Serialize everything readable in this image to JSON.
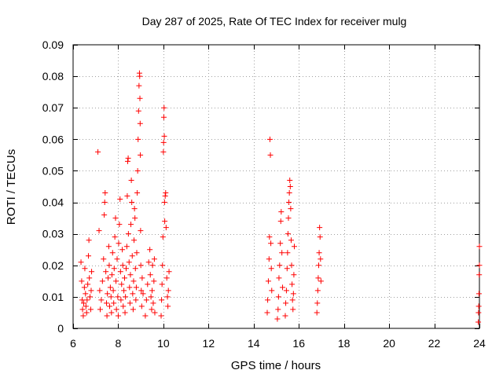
{
  "chart_data": {
    "type": "scatter",
    "title": "Day 287 of 2025, Rate Of TEC Index for receiver mulg",
    "xlabel": "GPS time / hours",
    "ylabel": "ROTI / TECUs",
    "xlim": [
      6,
      24
    ],
    "ylim": [
      0,
      0.09
    ],
    "xticks": [
      "6",
      "8",
      "10",
      "12",
      "14",
      "16",
      "18",
      "20",
      "22",
      "24"
    ],
    "yticks": [
      "0",
      "0.01",
      "0.02",
      "0.03",
      "0.04",
      "0.05",
      "0.06",
      "0.07",
      "0.08",
      "0.09"
    ],
    "grid": true,
    "marker": "+",
    "color": "#ff0000",
    "series": [
      {
        "points": [
          [
            6.35,
            0.021
          ],
          [
            6.38,
            0.015
          ],
          [
            6.4,
            0.009
          ],
          [
            6.42,
            0.006
          ],
          [
            6.45,
            0.004
          ],
          [
            6.47,
            0.008
          ],
          [
            6.5,
            0.013
          ],
          [
            6.52,
            0.019
          ],
          [
            6.55,
            0.011
          ],
          [
            6.57,
            0.007
          ],
          [
            6.6,
            0.005
          ],
          [
            6.62,
            0.009
          ],
          [
            6.65,
            0.014
          ],
          [
            6.68,
            0.023
          ],
          [
            6.7,
            0.028
          ],
          [
            6.72,
            0.016
          ],
          [
            6.75,
            0.01
          ],
          [
            6.78,
            0.006
          ],
          [
            6.8,
            0.012
          ],
          [
            6.82,
            0.018
          ],
          [
            7.1,
            0.056
          ],
          [
            7.15,
            0.031
          ],
          [
            7.18,
            0.012
          ],
          [
            7.2,
            0.006
          ],
          [
            7.25,
            0.009
          ],
          [
            7.3,
            0.015
          ],
          [
            7.35,
            0.022
          ],
          [
            7.38,
            0.036
          ],
          [
            7.4,
            0.04
          ],
          [
            7.42,
            0.043
          ],
          [
            7.45,
            0.018
          ],
          [
            7.48,
            0.008
          ],
          [
            7.5,
            0.004
          ],
          [
            7.52,
            0.011
          ],
          [
            7.55,
            0.016
          ],
          [
            7.58,
            0.026
          ],
          [
            7.6,
            0.02
          ],
          [
            7.62,
            0.007
          ],
          [
            7.65,
            0.013
          ],
          [
            7.68,
            0.01
          ],
          [
            7.7,
            0.005
          ],
          [
            7.72,
            0.017
          ],
          [
            7.75,
            0.024
          ],
          [
            7.78,
            0.012
          ],
          [
            7.8,
            0.008
          ],
          [
            7.82,
            0.019
          ],
          [
            7.85,
            0.029
          ],
          [
            7.88,
            0.035
          ],
          [
            7.9,
            0.015
          ],
          [
            7.92,
            0.006
          ],
          [
            7.95,
            0.022
          ],
          [
            7.98,
            0.01
          ],
          [
            8.0,
            0.004
          ],
          [
            8.02,
            0.027
          ],
          [
            8.05,
            0.033
          ],
          [
            8.08,
            0.041
          ],
          [
            8.1,
            0.018
          ],
          [
            8.12,
            0.009
          ],
          [
            8.15,
            0.014
          ],
          [
            8.18,
            0.025
          ],
          [
            8.2,
            0.02
          ],
          [
            8.22,
            0.007
          ],
          [
            8.25,
            0.012
          ],
          [
            8.28,
            0.016
          ],
          [
            8.3,
            0.005
          ],
          [
            8.32,
            0.01
          ],
          [
            8.35,
            0.019
          ],
          [
            8.38,
            0.026
          ],
          [
            8.4,
            0.042
          ],
          [
            8.42,
            0.053
          ],
          [
            8.44,
            0.054
          ],
          [
            8.45,
            0.03
          ],
          [
            8.48,
            0.021
          ],
          [
            8.5,
            0.013
          ],
          [
            8.52,
            0.008
          ],
          [
            8.54,
            0.017
          ],
          [
            8.56,
            0.033
          ],
          [
            8.58,
            0.047
          ],
          [
            8.6,
            0.04
          ],
          [
            8.62,
            0.023
          ],
          [
            8.64,
            0.011
          ],
          [
            8.66,
            0.006
          ],
          [
            8.68,
            0.015
          ],
          [
            8.7,
            0.028
          ],
          [
            8.72,
            0.038
          ],
          [
            8.74,
            0.035
          ],
          [
            8.76,
            0.019
          ],
          [
            8.78,
            0.009
          ],
          [
            8.8,
            0.013
          ],
          [
            8.82,
            0.024
          ],
          [
            8.84,
            0.043
          ],
          [
            8.86,
            0.05
          ],
          [
            8.88,
            0.06
          ],
          [
            8.9,
            0.069
          ],
          [
            8.92,
            0.077
          ],
          [
            8.94,
            0.081
          ],
          [
            8.95,
            0.08
          ],
          [
            8.96,
            0.073
          ],
          [
            8.97,
            0.065
          ],
          [
            8.98,
            0.055
          ],
          [
            8.99,
            0.031
          ],
          [
            9.0,
            0.02
          ],
          [
            9.02,
            0.012
          ],
          [
            9.04,
            0.007
          ],
          [
            9.06,
            0.016
          ],
          [
            9.1,
            0.011
          ],
          [
            9.2,
            0.004
          ],
          [
            9.25,
            0.009
          ],
          [
            9.3,
            0.014
          ],
          [
            9.35,
            0.021
          ],
          [
            9.4,
            0.025
          ],
          [
            9.42,
            0.017
          ],
          [
            9.45,
            0.01
          ],
          [
            9.48,
            0.006
          ],
          [
            9.5,
            0.012
          ],
          [
            9.52,
            0.02
          ],
          [
            9.55,
            0.008
          ],
          [
            9.58,
            0.015
          ],
          [
            9.6,
            0.022
          ],
          [
            9.62,
            0.005
          ],
          [
            9.9,
            0.004
          ],
          [
            9.92,
            0.009
          ],
          [
            9.94,
            0.014
          ],
          [
            9.96,
            0.02
          ],
          [
            9.98,
            0.029
          ],
          [
            10.0,
            0.056
          ],
          [
            10.01,
            0.059
          ],
          [
            10.02,
            0.067
          ],
          [
            10.03,
            0.07
          ],
          [
            10.04,
            0.061
          ],
          [
            10.05,
            0.04
          ],
          [
            10.06,
            0.034
          ],
          [
            10.08,
            0.042
          ],
          [
            10.1,
            0.043
          ],
          [
            10.12,
            0.032
          ],
          [
            10.15,
            0.016
          ],
          [
            10.18,
            0.01
          ],
          [
            10.2,
            0.007
          ],
          [
            10.22,
            0.012
          ],
          [
            10.25,
            0.018
          ],
          [
            14.6,
            0.005
          ],
          [
            14.62,
            0.009
          ],
          [
            14.65,
            0.015
          ],
          [
            14.68,
            0.022
          ],
          [
            14.7,
            0.029
          ],
          [
            14.72,
            0.06
          ],
          [
            14.74,
            0.055
          ],
          [
            14.76,
            0.027
          ],
          [
            14.78,
            0.019
          ],
          [
            14.8,
            0.012
          ],
          [
            15.05,
            0.003
          ],
          [
            15.08,
            0.006
          ],
          [
            15.1,
            0.01
          ],
          [
            15.12,
            0.016
          ],
          [
            15.15,
            0.02
          ],
          [
            15.18,
            0.027
          ],
          [
            15.2,
            0.034
          ],
          [
            15.22,
            0.037
          ],
          [
            15.25,
            0.024
          ],
          [
            15.28,
            0.013
          ],
          [
            15.4,
            0.004
          ],
          [
            15.42,
            0.008
          ],
          [
            15.45,
            0.012
          ],
          [
            15.48,
            0.019
          ],
          [
            15.5,
            0.024
          ],
          [
            15.52,
            0.03
          ],
          [
            15.54,
            0.035
          ],
          [
            15.56,
            0.04
          ],
          [
            15.58,
            0.043
          ],
          [
            15.6,
            0.047
          ],
          [
            15.62,
            0.045
          ],
          [
            15.64,
            0.038
          ],
          [
            15.66,
            0.028
          ],
          [
            15.68,
            0.02
          ],
          [
            15.7,
            0.014
          ],
          [
            15.72,
            0.009
          ],
          [
            15.74,
            0.006
          ],
          [
            15.76,
            0.011
          ],
          [
            15.78,
            0.017
          ],
          [
            15.8,
            0.026
          ],
          [
            16.8,
            0.005
          ],
          [
            16.82,
            0.008
          ],
          [
            16.84,
            0.012
          ],
          [
            16.86,
            0.016
          ],
          [
            16.88,
            0.02
          ],
          [
            16.9,
            0.024
          ],
          [
            16.92,
            0.032
          ],
          [
            16.94,
            0.029
          ],
          [
            16.96,
            0.022
          ],
          [
            16.98,
            0.015
          ],
          [
            23.95,
            0.002
          ],
          [
            23.96,
            0.005
          ],
          [
            23.97,
            0.007
          ],
          [
            23.98,
            0.011
          ],
          [
            23.99,
            0.017
          ],
          [
            24.0,
            0.02
          ],
          [
            24.0,
            0.026
          ]
        ]
      }
    ]
  }
}
